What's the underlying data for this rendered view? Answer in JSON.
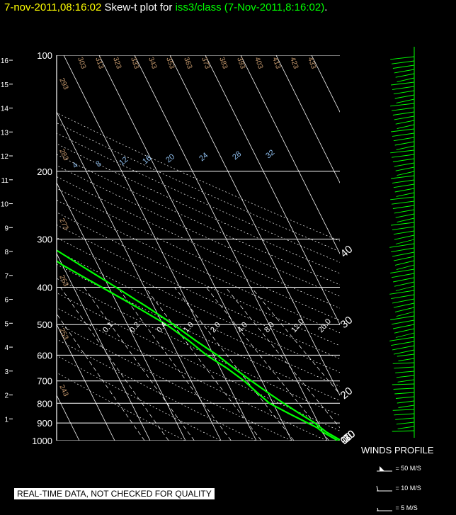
{
  "header": {
    "date": "7-nov-2011,08:16:02",
    "mid": "Skew-t plot for",
    "source": "iss3/class (7-Nov-2011,8:16:02)",
    "period": "."
  },
  "disclaimer": "REAL-TIME DATA, NOT CHECKED FOR QUALITY",
  "winds_profile": {
    "title": "WINDS PROFILE",
    "key": [
      {
        "label": "= 50 M/S",
        "symbol": "pennant"
      },
      {
        "label": "= 10 M/S",
        "symbol": "full-barb"
      },
      {
        "label": "= 5 M/S",
        "symbol": "half-barb"
      }
    ]
  },
  "colors": {
    "background": "#000000",
    "grid": "#ffffff",
    "trace": "#00ff00",
    "temp_labels": "#ffffff",
    "dry_adiabat_labels": "#c89b6e",
    "mixing_ratio_labels": "#8fbfef",
    "date_text": "#ffff00"
  },
  "chart_data": {
    "type": "line",
    "title": "Skew-t plot for iss3/class (7-Nov-2011,8:16:02)",
    "y_scale": "log-pressure",
    "ylim": [
      1000,
      100
    ],
    "pressure_ticks": [
      "100",
      "200",
      "300",
      "400",
      "500",
      "600",
      "700",
      "800",
      "900",
      "1000"
    ],
    "height_ticks_km": [
      "1",
      "2",
      "3",
      "4",
      "5",
      "6",
      "7",
      "8",
      "9",
      "10",
      "11",
      "12",
      "13",
      "14",
      "15",
      "16"
    ],
    "isotherm_labels_top": [
      "-120",
      "-110",
      "-100",
      "-90",
      "-80",
      "-70",
      "-60",
      "-50",
      "-40"
    ],
    "isotherm_labels_right": [
      "-30",
      "-20",
      "-10",
      "0",
      "10",
      "20",
      "30",
      "40"
    ],
    "dry_adiabat_labels": [
      "243",
      "253",
      "263",
      "273",
      "283",
      "293",
      "303",
      "313",
      "323",
      "333",
      "343",
      "353",
      "363",
      "373",
      "383",
      "393",
      "403",
      "413",
      "423",
      "433"
    ],
    "mixing_ratio_labels_top": [
      "4",
      "8",
      "12",
      "16",
      "20",
      "24",
      "28",
      "32"
    ],
    "mixing_ratio_labels_bottom": [
      "0.1",
      "0.2",
      "0.4",
      "1.0",
      "2.0",
      "4.0",
      "8.0",
      "12.0",
      "20.0"
    ],
    "grid": true,
    "series": [
      {
        "name": "temperature",
        "points": [
          [
            1000,
            14
          ],
          [
            950,
            11
          ],
          [
            925,
            10
          ],
          [
            900,
            9
          ],
          [
            850,
            6
          ],
          [
            800,
            3
          ],
          [
            750,
            0
          ],
          [
            700,
            -3
          ],
          [
            650,
            -6
          ],
          [
            600,
            -9
          ],
          [
            550,
            -13
          ],
          [
            500,
            -17
          ],
          [
            450,
            -22
          ],
          [
            400,
            -28
          ],
          [
            350,
            -35
          ],
          [
            300,
            -43
          ],
          [
            250,
            -51
          ],
          [
            220,
            -55
          ],
          [
            200,
            -58
          ],
          [
            180,
            -60
          ],
          [
            160,
            -62
          ],
          [
            140,
            -64
          ],
          [
            120,
            -67
          ],
          [
            100,
            -71
          ]
        ]
      },
      {
        "name": "dewpoint",
        "points": [
          [
            1000,
            13
          ],
          [
            950,
            10
          ],
          [
            925,
            9
          ],
          [
            900,
            7
          ],
          [
            850,
            3
          ],
          [
            800,
            -1
          ],
          [
            750,
            -3
          ],
          [
            700,
            -5
          ],
          [
            650,
            -8
          ],
          [
            600,
            -12
          ],
          [
            550,
            -15
          ],
          [
            500,
            -19
          ],
          [
            450,
            -25
          ],
          [
            400,
            -32
          ],
          [
            350,
            -40
          ],
          [
            320,
            -44
          ],
          [
            300,
            -48
          ],
          [
            270,
            -54
          ],
          [
            260,
            -58
          ],
          [
            240,
            -57
          ],
          [
            220,
            -61
          ],
          [
            200,
            -66
          ],
          [
            180,
            -68
          ],
          [
            160,
            -70
          ],
          [
            140,
            -72
          ],
          [
            120,
            -74
          ],
          [
            100,
            -77
          ]
        ]
      }
    ]
  }
}
